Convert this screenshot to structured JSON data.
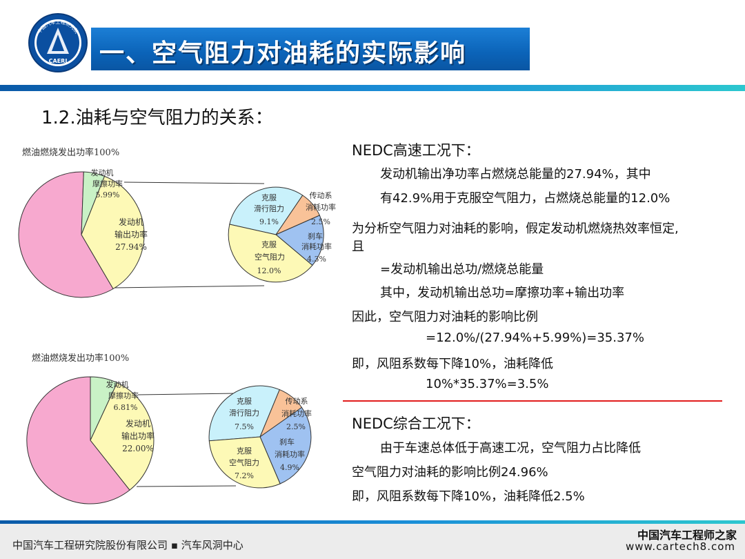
{
  "header": {
    "title": "一、空气阻力对油耗的实际影响",
    "logo_text": "CAERI",
    "logo_arc_text": "中国汽车工程研究院"
  },
  "subtitle": "1.2.油耗与空气阻力的关系：",
  "chart1": {
    "title": "燃油燃烧发出功率100%",
    "big": {
      "friction": [
        "发动机",
        "摩擦功率",
        "5.99%"
      ],
      "output": [
        "发动机",
        "输出功率",
        "27.94%"
      ]
    },
    "small": {
      "rolling": [
        "克服",
        "滑行阻力",
        "9.1%"
      ],
      "drivetrain": [
        "传动系",
        "消耗功率",
        "2.5%"
      ],
      "brake": [
        "刹车",
        "消耗功率",
        "4.3%"
      ],
      "air": [
        "克服",
        "空气阻力",
        "12.0%"
      ]
    }
  },
  "chart2": {
    "title": "燃油燃烧发出功率100%",
    "big": {
      "friction": [
        "发动机",
        "摩擦功率",
        "6.81%"
      ],
      "output": [
        "发动机",
        "输出功率",
        "22.00%"
      ]
    },
    "small": {
      "rolling": [
        "克服",
        "滑行阻力",
        "7.5%"
      ],
      "drivetrain": [
        "传动系",
        "消耗功率",
        "2.5%"
      ],
      "brake": [
        "刹车",
        "消耗功率",
        "4.9%"
      ],
      "air": [
        "克服",
        "空气阻力",
        "7.2%"
      ]
    }
  },
  "chart_data": [
    {
      "type": "pie",
      "title": "燃油燃烧发出功率100%",
      "categories": [
        "发动机摩擦功率",
        "发动机输出功率"
      ],
      "values": [
        5.99,
        27.94
      ],
      "detail": {
        "type": "pie",
        "categories": [
          "克服滑行阻力",
          "传动系消耗功率",
          "刹车消耗功率",
          "克服空气阻力"
        ],
        "values": [
          9.1,
          2.5,
          4.3,
          12.0
        ]
      }
    },
    {
      "type": "pie",
      "title": "燃油燃烧发出功率100%",
      "categories": [
        "发动机摩擦功率",
        "发动机输出功率"
      ],
      "values": [
        6.81,
        22.0
      ],
      "detail": {
        "type": "pie",
        "categories": [
          "克服滑行阻力",
          "传动系消耗功率",
          "刹车消耗功率",
          "克服空气阻力"
        ],
        "values": [
          7.5,
          2.5,
          4.9,
          7.2
        ]
      }
    }
  ],
  "colors": {
    "pink": "#f7a9cf",
    "green": "#c9f2c6",
    "yellow": "#fdf9b6",
    "cyan": "#c9f1fb",
    "orange": "#f9c298",
    "blue": "#9fc2f1",
    "title_blue": "#0b63b8",
    "red_line": "#e11b1b"
  },
  "right": {
    "nedc_high": "NEDC高速工况下：",
    "l1": "发动机输出净功率占燃烧总能量的27.94%，其中",
    "l2": "有42.9%用于克服空气阻力，占燃烧总能量的12.0%",
    "l3": "为分析空气阻力对油耗的影响，假定发动机燃烧热效率恒定,",
    "l4": "且",
    "l5": "=发动机输出总功/燃烧总能量",
    "l6": "其中，发动机输出总功=摩擦功率+输出功率",
    "l7": "因此，空气阻力对油耗的影响比例",
    "l8": "=12.0%/(27.94%+5.99%)=35.37%",
    "l9": "即，风阻系数每下降10%，油耗降低",
    "l10": "10%*35.37%=3.5%",
    "nedc_comb": "NEDC综合工况下：",
    "l11": "由于车速总体低于高速工况，空气阻力占比降低",
    "l12": "空气阻力对油耗的影响比例24.96%",
    "l13": "即，风阻系数每下降10%，油耗降低2.5%"
  },
  "footer": {
    "text": "中国汽车工程研究院股份有限公司 ▪ 汽车风洞中心",
    "watermark_cn": "中国汽车工程师之家",
    "watermark_url": "www.cartech8.com"
  }
}
